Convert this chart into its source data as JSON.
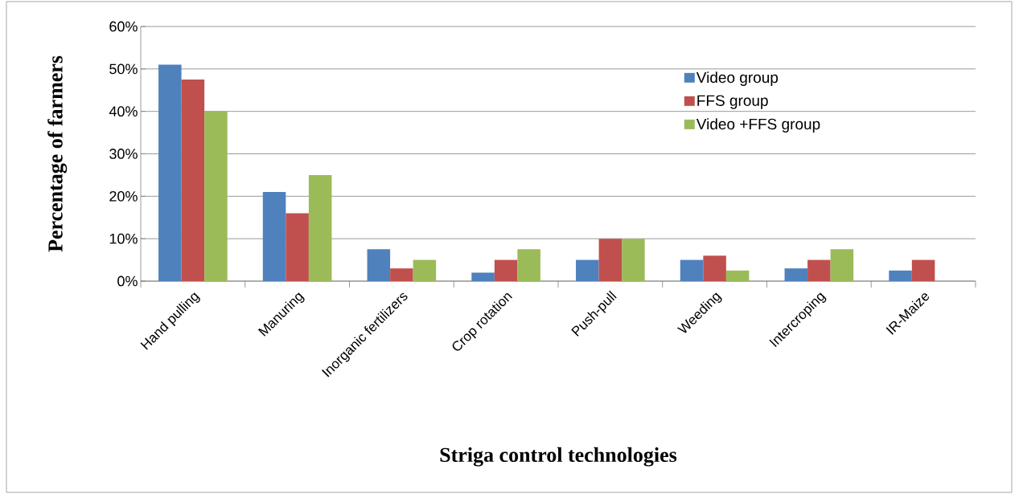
{
  "chart_data": {
    "type": "bar",
    "xlabel": "Striga control technologies",
    "ylabel": "Percentage of farmers",
    "categories": [
      "Hand pulling",
      "Manuring",
      "Inorganic fertilizers",
      "Crop rotation",
      "Push-pull",
      "Weeding",
      "Intercroping",
      "IR-Maize"
    ],
    "series": [
      {
        "name": "Video group",
        "color": "#4f81bd",
        "values": [
          51,
          21,
          7.5,
          2,
          5,
          5,
          3,
          2.5
        ]
      },
      {
        "name": "FFS group",
        "color": "#c0504d",
        "values": [
          47.5,
          16,
          3,
          5,
          10,
          6,
          5,
          5
        ]
      },
      {
        "name": "Video +FFS group",
        "color": "#9bbb59",
        "values": [
          40,
          25,
          5,
          7.5,
          10,
          2.5,
          7.5,
          null
        ]
      }
    ],
    "ylim": [
      0,
      60
    ],
    "yticks": [
      {
        "value": 0,
        "label": "0%"
      },
      {
        "value": 10,
        "label": "10%"
      },
      {
        "value": 20,
        "label": "20%"
      },
      {
        "value": 30,
        "label": "30%"
      },
      {
        "value": 40,
        "label": "40%"
      },
      {
        "value": 50,
        "label": "50%"
      },
      {
        "value": 60,
        "label": "60%"
      }
    ],
    "grid": "y",
    "legend": "top right"
  }
}
